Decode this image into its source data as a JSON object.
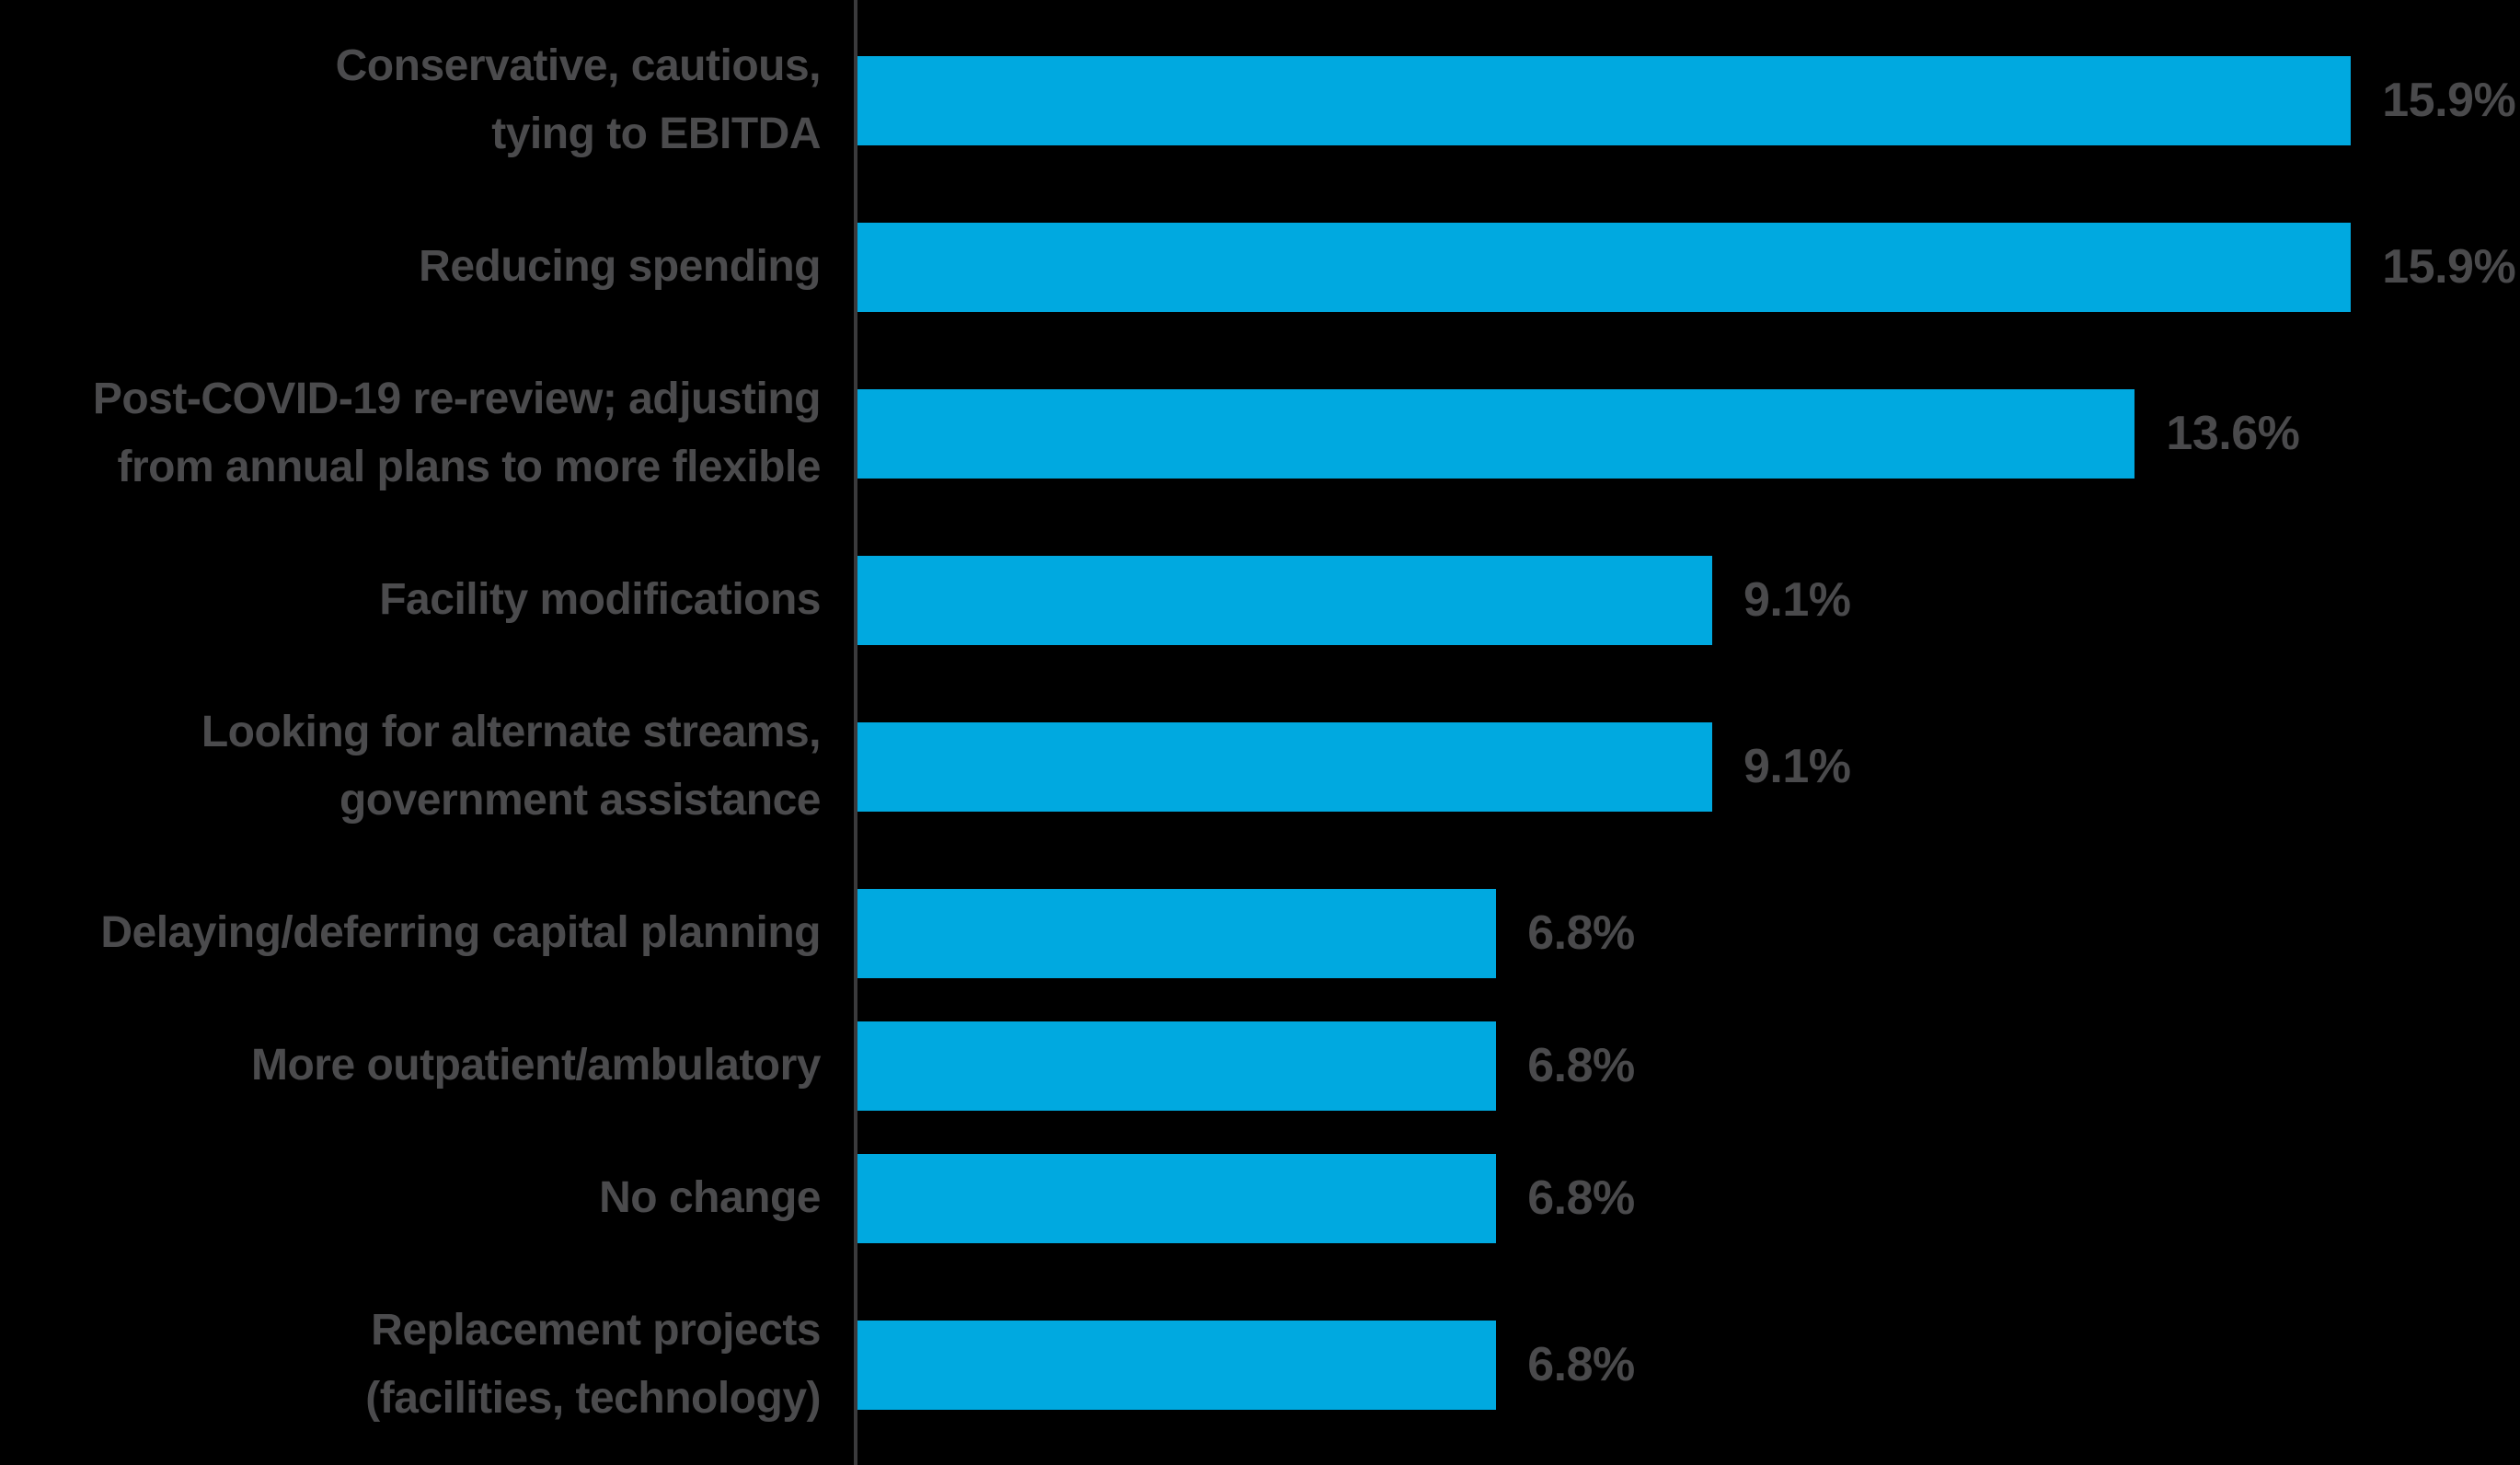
{
  "chart_data": {
    "type": "bar",
    "orientation": "horizontal",
    "title": "",
    "xlabel": "",
    "ylabel": "",
    "grid": false,
    "legend": "none",
    "axis_max_percent": 17.7,
    "categories": [
      "Conservative, cautious,\ntying to EBITDA",
      "Reducing spending",
      "Post-COVID-19 re-review; adjusting\nfrom annual plans to more flexible",
      "Facility modifications",
      "Looking for alternate streams,\ngovernment assistance",
      "Delaying/deferring capital planning",
      "More outpatient/ambulatory",
      "No change",
      "Replacement projects\n(facilities, technology)"
    ],
    "values": [
      15.9,
      15.9,
      13.6,
      9.1,
      9.1,
      6.8,
      6.8,
      6.8,
      6.8
    ],
    "value_labels": [
      "15.9%",
      "15.9%",
      "13.6%",
      "9.1%",
      "9.1%",
      "6.8%",
      "6.8%",
      "6.8%",
      "6.8%"
    ],
    "colors": {
      "bar": "#00a9e0",
      "category_label": "#4b4b4d",
      "value_label": "#4a4a4c",
      "axis_line": "#3a3a3c",
      "background": "#000000"
    }
  }
}
